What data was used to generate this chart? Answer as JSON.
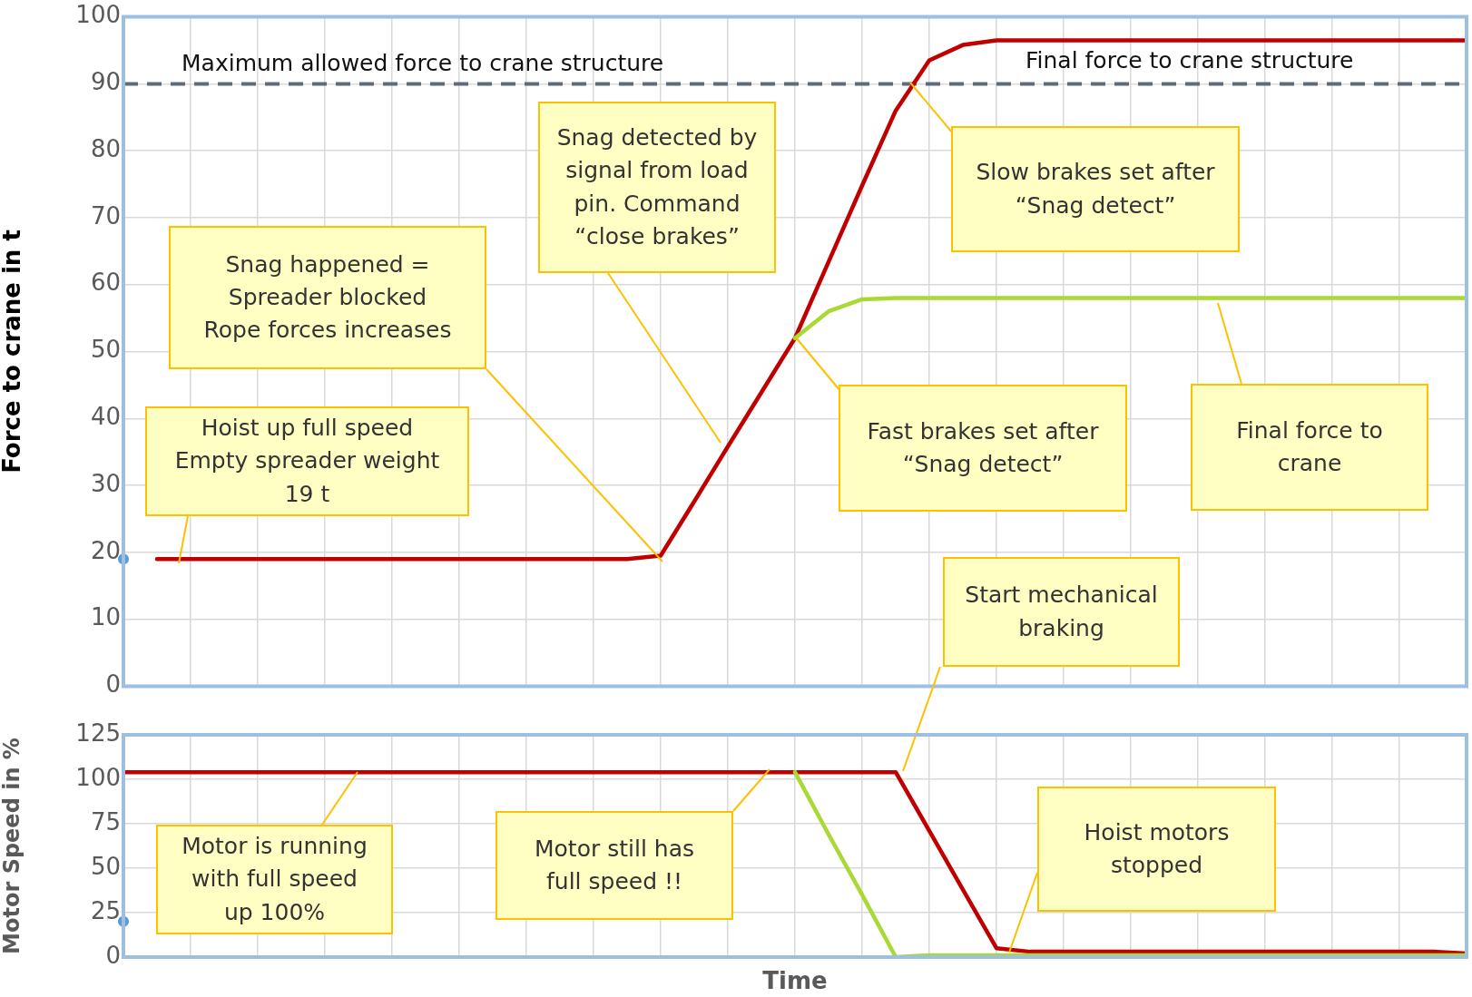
{
  "chart_data": [
    {
      "type": "line",
      "ylabel": "Force to crane in t",
      "ylim": [
        0,
        100
      ],
      "yticks": [
        0,
        10,
        20,
        30,
        40,
        50,
        60,
        70,
        80,
        90,
        100
      ],
      "grid": true,
      "legend": false,
      "categories": [
        null,
        null,
        null,
        null,
        null,
        null,
        null,
        null,
        null,
        null,
        null,
        null,
        null,
        null,
        null,
        null,
        null,
        null,
        null,
        null,
        null,
        null,
        null,
        null,
        null,
        null,
        null,
        null,
        null,
        null,
        null,
        null,
        null,
        null,
        null,
        null,
        null,
        null,
        null,
        null,
        null
      ],
      "series": [
        {
          "color": "#c00000",
          "values": [
            null,
            19,
            19,
            19,
            19,
            19,
            19,
            19,
            19,
            19,
            19,
            19,
            19,
            19,
            19,
            19,
            19.5,
            27.6,
            35.8,
            43.9,
            52,
            63.4,
            74.8,
            86,
            93.5,
            95.8,
            96.5,
            96.5,
            96.5,
            96.5,
            96.5,
            96.5,
            96.5,
            96.5,
            96.5,
            96.5,
            96.5,
            96.5,
            96.5,
            96.5,
            96.5
          ]
        },
        {
          "color": "#a9d934",
          "values": [
            null,
            null,
            null,
            null,
            null,
            null,
            null,
            null,
            null,
            null,
            null,
            null,
            null,
            null,
            null,
            null,
            null,
            null,
            null,
            null,
            52,
            56,
            57.8,
            58,
            58,
            58,
            58,
            58,
            58,
            58,
            58,
            58,
            58,
            58,
            58,
            58,
            58,
            58,
            58,
            58,
            58
          ]
        },
        {
          "type": "scatter",
          "color": "#5b9bd5",
          "values": [
            19,
            null,
            null,
            null,
            null,
            null,
            null,
            null,
            null,
            null,
            null,
            null,
            null,
            null,
            null,
            null,
            null,
            null,
            null,
            null,
            null,
            null,
            null,
            null,
            null,
            null,
            null,
            null,
            null,
            null,
            null,
            null,
            null,
            null,
            null,
            null,
            null,
            null,
            null,
            null,
            null
          ]
        }
      ],
      "ref_lines": [
        {
          "axis": "y",
          "value": 90,
          "label": "Maximum allowed force to crane structure",
          "color": "#5f6b78",
          "line_style": "dashed"
        }
      ],
      "annotations": [
        "Final force to crane structure",
        "Hoist up full speed\nEmpty spreader weight\n19 t",
        "Snag happened =\nSpreader blocked\nRope forces increases",
        "Snag detected by\nsignal from load\npin. Command\n“close brakes”",
        "Slow brakes set  after\n“Snag detect”",
        "Fast brakes set  after\n“Snag detect”",
        "Final force to\ncrane",
        "Start mechanical\nbraking"
      ]
    },
    {
      "type": "line",
      "ylabel": "Motor Speed in %",
      "xlabel": "Time",
      "ylim": [
        0,
        125
      ],
      "yticks": [
        0,
        25,
        50,
        75,
        100,
        125
      ],
      "grid": true,
      "legend": false,
      "categories": [
        null,
        null,
        null,
        null,
        null,
        null,
        null,
        null,
        null,
        null,
        null,
        null,
        null,
        null,
        null,
        null,
        null,
        null,
        null,
        null,
        null,
        null,
        null,
        null,
        null,
        null,
        null,
        null,
        null,
        null,
        null,
        null,
        null,
        null,
        null,
        null,
        null,
        null,
        null,
        null,
        null
      ],
      "series": [
        {
          "color": "#c00000",
          "values": [
            104,
            104,
            104,
            104,
            104,
            104,
            104,
            104,
            104,
            104,
            104,
            104,
            104,
            104,
            104,
            104,
            104,
            104,
            104,
            104,
            104,
            104,
            104,
            104,
            71,
            38,
            5,
            3,
            3,
            3,
            3,
            3,
            3,
            3,
            3,
            3,
            3,
            3,
            3,
            3,
            2
          ]
        },
        {
          "color": "#a9d934",
          "values": [
            null,
            null,
            null,
            null,
            null,
            null,
            null,
            null,
            null,
            null,
            null,
            null,
            null,
            null,
            null,
            null,
            null,
            null,
            null,
            null,
            104,
            69,
            35,
            0,
            1,
            1,
            1,
            1,
            1,
            1,
            1,
            1,
            1,
            1,
            1,
            1,
            1,
            1,
            1,
            1,
            1
          ]
        },
        {
          "type": "scatter",
          "color": "#5b9bd5",
          "values": [
            20,
            null,
            null,
            null,
            null,
            null,
            null,
            null,
            null,
            null,
            null,
            null,
            null,
            null,
            null,
            null,
            null,
            null,
            null,
            null,
            null,
            null,
            null,
            null,
            null,
            null,
            null,
            null,
            null,
            null,
            null,
            null,
            null,
            null,
            null,
            null,
            null,
            null,
            null,
            null,
            null
          ]
        }
      ],
      "annotations": [
        "Motor is running\nwith full speed\nup 100%",
        "Motor still has\nfull speed !!",
        "Hoist motors\nstopped"
      ]
    }
  ]
}
